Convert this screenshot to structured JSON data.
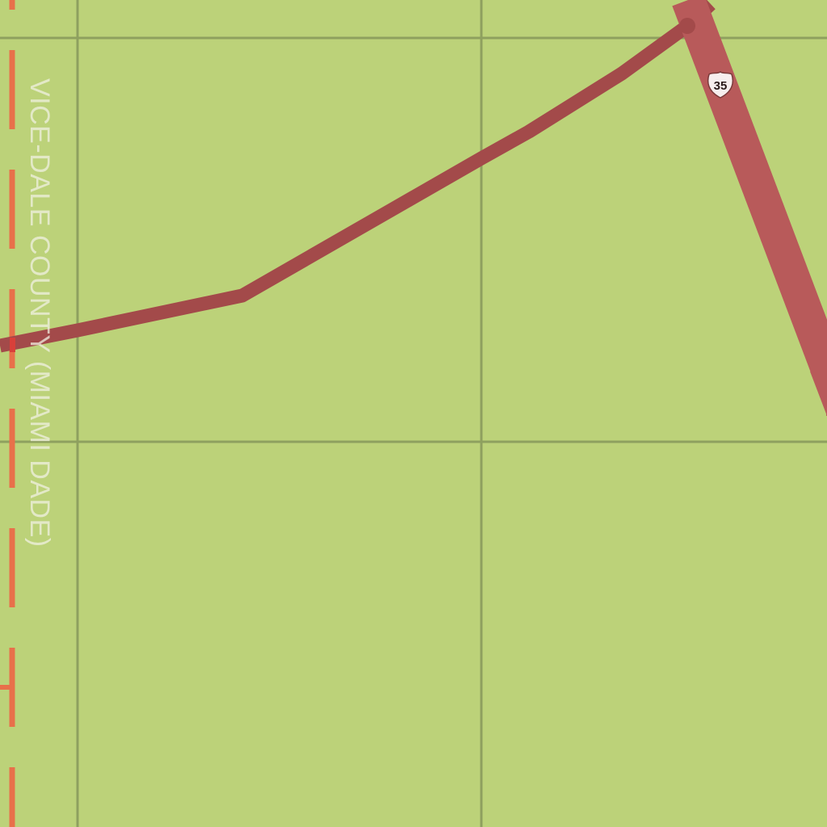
{
  "map": {
    "county_label": "VICE-DALE COUNTY (MIAMI DADE)",
    "highway_shield": {
      "number": "35",
      "type": "us-route-shield-icon"
    },
    "colors": {
      "land": "#bcd279",
      "grid_lines": "#8ea05f",
      "county_boundary": "#e8704a",
      "highway_major": "#b85a5a",
      "highway_secondary": "#a34a4a",
      "county_label": "#f0f0e1",
      "shield_fill": "#f7eeee",
      "shield_text": "#2a1a1a"
    }
  }
}
